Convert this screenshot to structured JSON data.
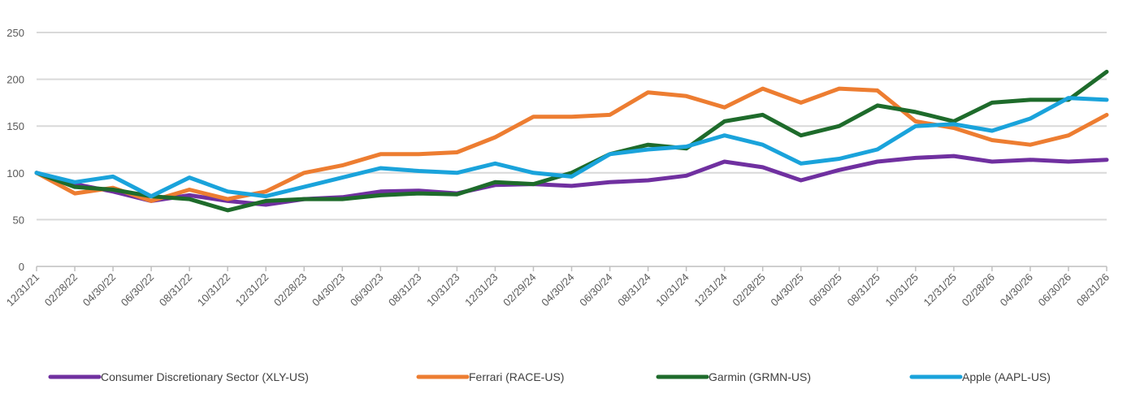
{
  "chart_data": {
    "type": "line",
    "title": "",
    "xlabel": "",
    "ylabel": "",
    "ylim": [
      0,
      250
    ],
    "yticks": [
      0,
      50,
      100,
      150,
      200,
      250
    ],
    "grid": true,
    "legend_position": "bottom",
    "x_tick_labels": [
      "12/31/21",
      "02/28/22",
      "04/30/22",
      "06/30/22",
      "08/31/22",
      "10/31/22",
      "12/31/22",
      "02/28/23",
      "04/30/23",
      "06/30/23",
      "08/31/23",
      "10/31/23",
      "12/31/23",
      "02/29/24",
      "04/30/24",
      "06/30/24",
      "08/31/24",
      "10/31/24",
      "12/31/24",
      "02/28/25",
      "04/30/25",
      "06/30/25",
      "08/31/25",
      "10/31/25",
      "12/31/25",
      "02/28/26",
      "04/30/26",
      "06/30/26",
      "08/31/26"
    ],
    "series": [
      {
        "name": "Consumer Discretionary Sector (XLY-US)",
        "color": "#7030A0",
        "values": [
          100,
          88,
          80,
          70,
          76,
          70,
          66,
          72,
          74,
          80,
          81,
          78,
          87,
          88,
          86,
          90,
          92,
          97,
          112,
          106,
          92,
          103,
          112,
          116,
          118,
          112,
          114,
          112,
          114
        ]
      },
      {
        "name": "Ferrari (RACE-US)",
        "color": "#ED7D31",
        "values": [
          100,
          78,
          84,
          70,
          82,
          72,
          80,
          100,
          108,
          120,
          120,
          122,
          138,
          160,
          160,
          162,
          186,
          182,
          170,
          190,
          175,
          190,
          188,
          155,
          148,
          135,
          130,
          140,
          162
        ]
      },
      {
        "name": "Garmin (GRMN-US)",
        "color": "#1E6B2B",
        "values": [
          100,
          85,
          82,
          75,
          72,
          60,
          70,
          72,
          72,
          76,
          78,
          77,
          90,
          88,
          100,
          120,
          130,
          126,
          155,
          162,
          140,
          150,
          172,
          165,
          155,
          175,
          178,
          178,
          208
        ]
      },
      {
        "name": "Apple (AAPL-US)",
        "color": "#1AA3DB",
        "values": [
          100,
          90,
          96,
          75,
          95,
          80,
          75,
          85,
          95,
          105,
          102,
          100,
          110,
          100,
          96,
          120,
          125,
          128,
          140,
          130,
          110,
          115,
          125,
          150,
          152,
          145,
          158,
          180,
          178
        ]
      }
    ]
  }
}
